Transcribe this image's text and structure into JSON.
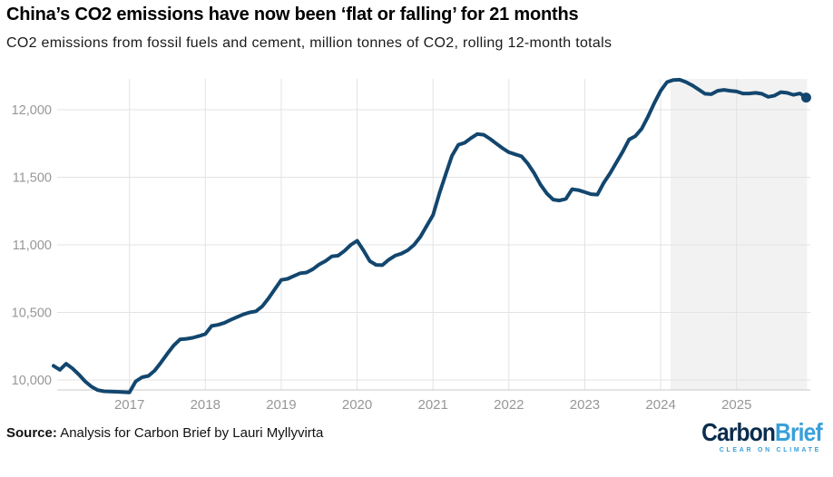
{
  "header": {
    "title": "China’s CO2 emissions have now been ‘flat or falling’ for 21 months",
    "subtitle": "CO2 emissions from fossil fuels and cement, million tonnes of CO2, rolling 12-month totals"
  },
  "source": {
    "label": "Source:",
    "text": " Analysis for Carbon Brief by Lauri Myllyvirta"
  },
  "logo": {
    "word1": "Carbon",
    "word2": "Brief",
    "tagline": "CLEAR ON CLIMATE",
    "word1_color": "#0a2c4e",
    "word2_color": "#38a0d9"
  },
  "chart_data": {
    "type": "line",
    "title": "China’s CO2 emissions have now been ‘flat or falling’ for 21 months",
    "subtitle": "CO2 emissions from fossil fuels and cement, million tonnes of CO2, rolling 12-month totals",
    "xlabel": "",
    "ylabel": "million tonnes of CO2, rolling 12-month totals",
    "x_start": "2016-01",
    "x_interval": "month",
    "x_tick_labels": [
      "2017",
      "2018",
      "2019",
      "2020",
      "2021",
      "2022",
      "2023",
      "2024",
      "2025"
    ],
    "y_ticks": [
      {
        "label": "10,000",
        "value": 10000
      },
      {
        "label": "10,500",
        "value": 10500
      },
      {
        "label": "11,000",
        "value": 11000
      },
      {
        "label": "11,500",
        "value": 11500
      },
      {
        "label": "12,000",
        "value": 12000
      }
    ],
    "ylim": [
      9930,
      12235
    ],
    "grid": true,
    "legend": "none",
    "line_color": "#12466e",
    "grid_color": "#e3e3e3",
    "axis_line_color": "#c8c8c8",
    "tick_text_color": "#979797",
    "shaded_region": {
      "start": "2024-03",
      "end": "2025-12",
      "color": "#f2f2f2"
    },
    "end_marker": true,
    "series": [
      {
        "name": "China CO2 emissions (Mt, rolling 12-month total)",
        "values": [
          10105,
          10075,
          10120,
          10085,
          10040,
          9990,
          9950,
          9925,
          9916,
          9915,
          9913,
          9910,
          9908,
          9990,
          10020,
          10030,
          10070,
          10130,
          10195,
          10255,
          10300,
          10305,
          10312,
          10325,
          10340,
          10400,
          10408,
          10422,
          10445,
          10465,
          10485,
          10500,
          10508,
          10545,
          10605,
          10672,
          10740,
          10748,
          10770,
          10790,
          10795,
          10820,
          10855,
          10880,
          10915,
          10920,
          10955,
          11000,
          11030,
          10960,
          10880,
          10852,
          10850,
          10890,
          10920,
          10935,
          10960,
          11000,
          11060,
          11140,
          11220,
          11380,
          11520,
          11660,
          11740,
          11755,
          11790,
          11820,
          11815,
          11785,
          11750,
          11715,
          11685,
          11670,
          11655,
          11600,
          11530,
          11445,
          11380,
          11335,
          11328,
          11340,
          11412,
          11405,
          11390,
          11375,
          11372,
          11460,
          11530,
          11610,
          11690,
          11780,
          11805,
          11860,
          11950,
          12050,
          12140,
          12205,
          12220,
          12222,
          12205,
          12180,
          12150,
          12118,
          12115,
          12140,
          12147,
          12140,
          12135,
          12120,
          12120,
          12125,
          12118,
          12095,
          12105,
          12130,
          12125,
          12110,
          12120,
          12090
        ]
      }
    ]
  }
}
